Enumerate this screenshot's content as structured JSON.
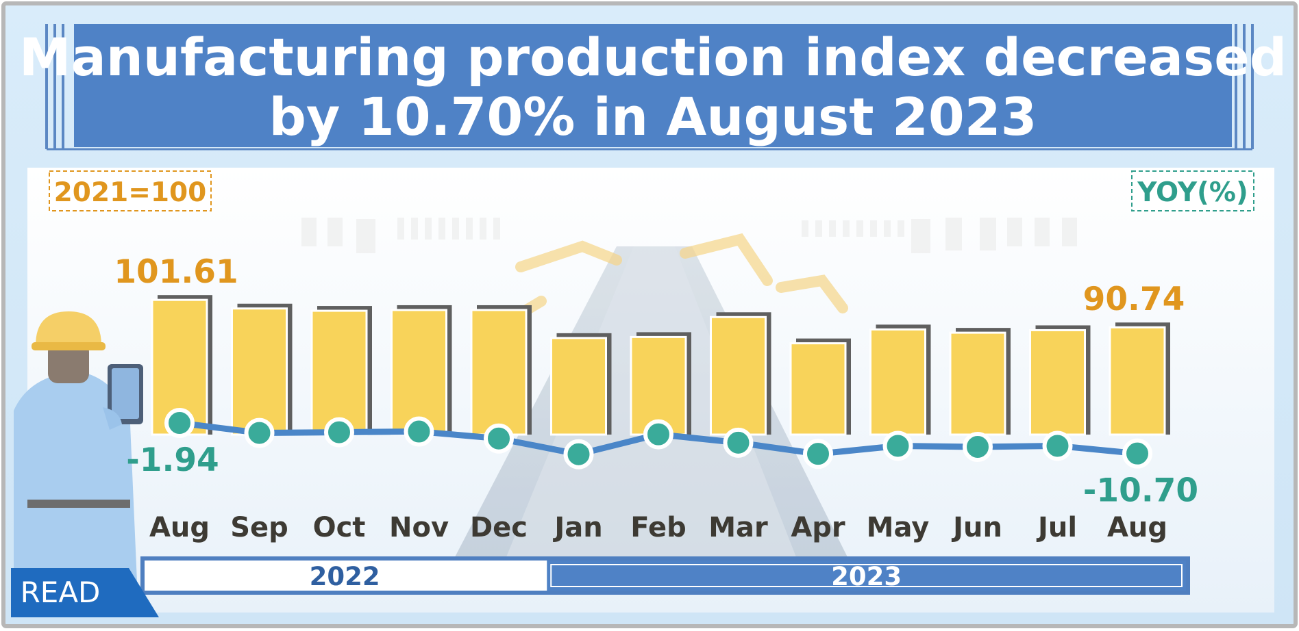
{
  "header": {
    "title_line1": "Manufacturing production index decreased",
    "title_line2": "by 10.70% in  August  2023"
  },
  "labels": {
    "base_unit": "2021=100",
    "yoy_unit": "YOY(%)",
    "read_button": "READ"
  },
  "chart_data": {
    "type": "bar",
    "categories": [
      "Aug",
      "Sep",
      "Oct",
      "Nov",
      "Dec",
      "Jan",
      "Feb",
      "Mar",
      "Apr",
      "May",
      "Jun",
      "Jul",
      "Aug"
    ],
    "groups": [
      {
        "label": "2022",
        "categories": [
          "Aug",
          "Sep",
          "Oct",
          "Nov",
          "Dec"
        ]
      },
      {
        "label": "2023",
        "categories": [
          "Jan",
          "Feb",
          "Mar",
          "Apr",
          "May",
          "Jun",
          "Jul",
          "Aug"
        ]
      }
    ],
    "series": [
      {
        "values": [
          101.61,
          98.2,
          97.3,
          97.6,
          97.6,
          86.5,
          86.9,
          94.8,
          84.4,
          89.9,
          88.6,
          89.6,
          90.74
        ],
        "axis": "index"
      },
      {
        "values": [
          -1.94,
          -4.8,
          -4.6,
          -4.4,
          -6.4,
          -10.9,
          -5.2,
          -7.6,
          -10.8,
          -8.5,
          -8.8,
          -8.5,
          -10.7
        ],
        "axis": "yoy"
      }
    ],
    "data_labels": [
      {
        "category_index": 0,
        "series": "index",
        "text": "101.61"
      },
      {
        "category_index": 12,
        "series": "index",
        "text": "90.74"
      },
      {
        "category_index": 0,
        "series": "yoy",
        "text": "-1.94"
      },
      {
        "category_index": 12,
        "series": "yoy",
        "text": "-10.70"
      }
    ],
    "colors": {
      "bars": "#f8d35a",
      "bar_shadow": "#5f5f5f",
      "line": "#4a86c8",
      "points": "#3aab9a",
      "index_label": "#e0961e",
      "yoy_label": "#2f9e8c"
    }
  }
}
